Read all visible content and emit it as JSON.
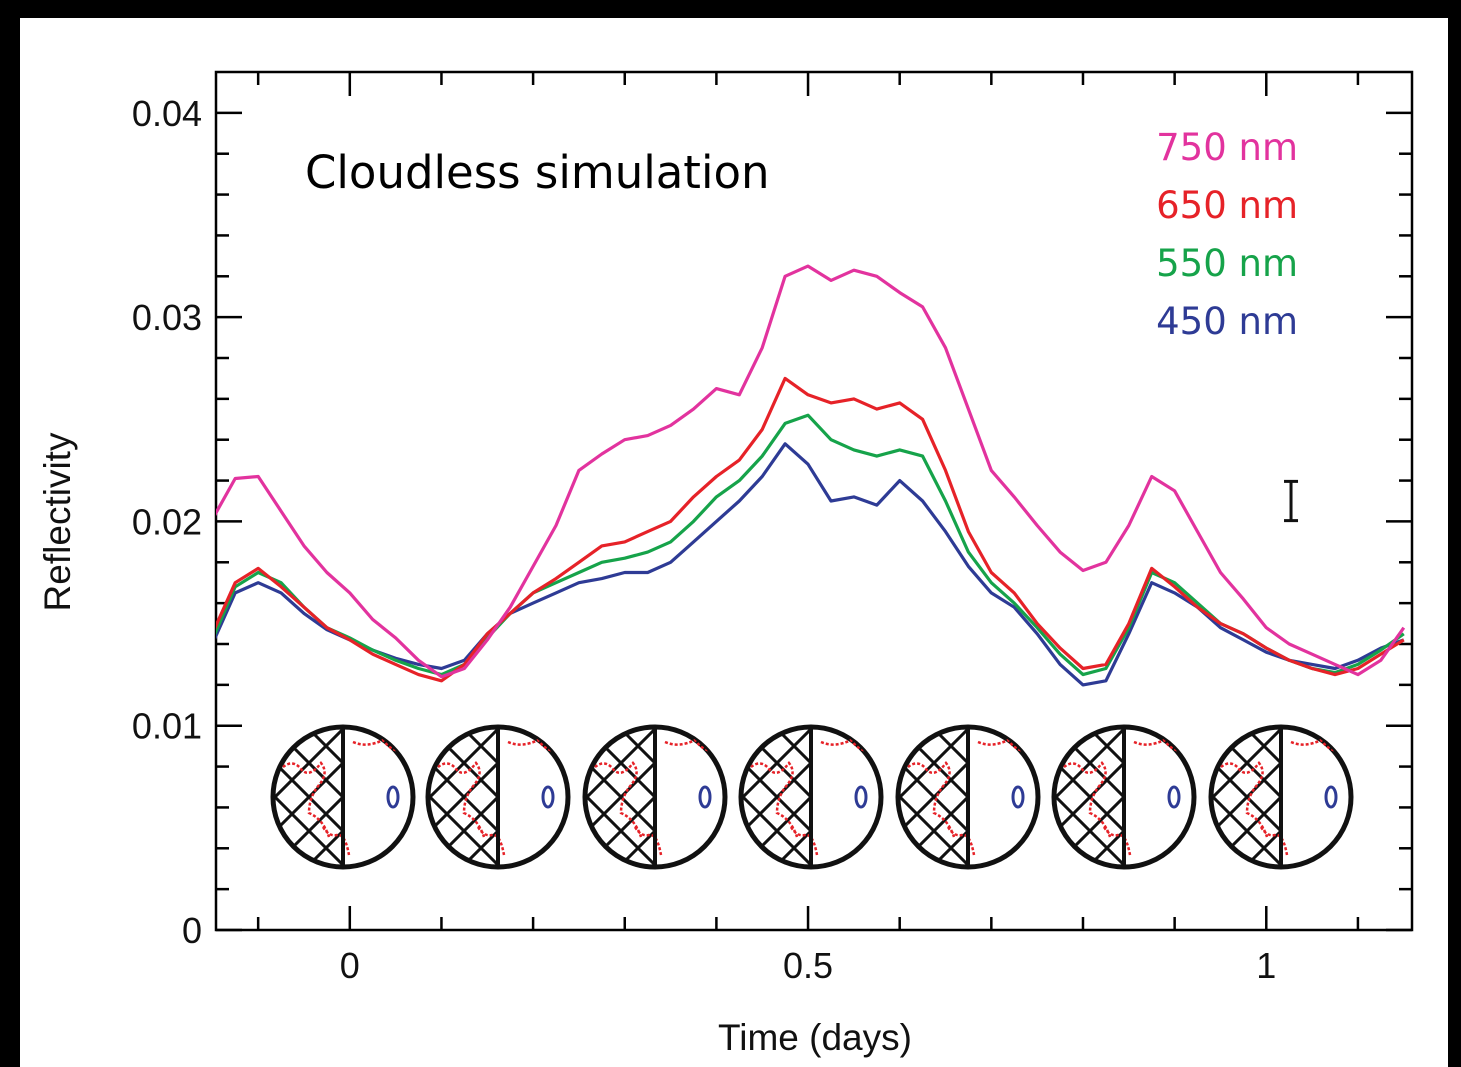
{
  "chart_data": {
    "type": "line",
    "annotation": "Cloudless simulation",
    "xlabel": "Time (days)",
    "ylabel": "Reflectivity",
    "xlim": [
      -0.146,
      1.159
    ],
    "ylim": [
      0,
      0.042
    ],
    "xticks": [
      0,
      0.5,
      1
    ],
    "yticks": [
      0,
      0.01,
      0.02,
      0.03,
      0.04
    ],
    "xticks_minor": [
      -0.1,
      0.1,
      0.2,
      0.3,
      0.4,
      0.6,
      0.7,
      0.8,
      0.9,
      1.1
    ],
    "yticks_minor": [
      0.002,
      0.004,
      0.006,
      0.008,
      0.012,
      0.014,
      0.016,
      0.018,
      0.022,
      0.024,
      0.026,
      0.028,
      0.032,
      0.034,
      0.036,
      0.038
    ],
    "x": [
      -0.15,
      -0.125,
      -0.1,
      -0.075,
      -0.05,
      -0.025,
      0,
      0.025,
      0.05,
      0.075,
      0.1,
      0.125,
      0.15,
      0.175,
      0.2,
      0.225,
      0.25,
      0.275,
      0.3,
      0.325,
      0.35,
      0.375,
      0.4,
      0.425,
      0.45,
      0.475,
      0.5,
      0.525,
      0.55,
      0.575,
      0.6,
      0.625,
      0.65,
      0.675,
      0.7,
      0.725,
      0.75,
      0.775,
      0.8,
      0.825,
      0.85,
      0.875,
      0.9,
      0.925,
      0.95,
      0.975,
      1,
      1.025,
      1.05,
      1.075,
      1.1,
      1.125,
      1.15
    ],
    "series": [
      {
        "name": "750 nm",
        "color": "#e2339e",
        "values": [
          0.0201,
          0.0221,
          0.0222,
          0.0205,
          0.0188,
          0.0175,
          0.0165,
          0.0152,
          0.0143,
          0.0132,
          0.0124,
          0.0128,
          0.0142,
          0.0158,
          0.0178,
          0.0198,
          0.0225,
          0.0233,
          0.024,
          0.0242,
          0.0247,
          0.0255,
          0.0265,
          0.0262,
          0.0285,
          0.032,
          0.0325,
          0.0318,
          0.0323,
          0.032,
          0.0312,
          0.0305,
          0.0285,
          0.0255,
          0.0225,
          0.0212,
          0.0198,
          0.0185,
          0.0176,
          0.018,
          0.0198,
          0.0222,
          0.0215,
          0.0195,
          0.0175,
          0.0162,
          0.0148,
          0.014,
          0.0135,
          0.013,
          0.0125,
          0.0132,
          0.0148
        ]
      },
      {
        "name": "650 nm",
        "color": "#e62228",
        "values": [
          0.0145,
          0.017,
          0.0177,
          0.0168,
          0.0158,
          0.0148,
          0.0142,
          0.0135,
          0.013,
          0.0125,
          0.0122,
          0.013,
          0.0145,
          0.0155,
          0.0165,
          0.0172,
          0.018,
          0.0188,
          0.019,
          0.0195,
          0.02,
          0.0212,
          0.0222,
          0.023,
          0.0245,
          0.027,
          0.0262,
          0.0258,
          0.026,
          0.0255,
          0.0258,
          0.025,
          0.0225,
          0.0195,
          0.0175,
          0.0165,
          0.015,
          0.0138,
          0.0128,
          0.013,
          0.015,
          0.0177,
          0.0168,
          0.0158,
          0.015,
          0.0145,
          0.0138,
          0.0132,
          0.0128,
          0.0125,
          0.0128,
          0.0135,
          0.0142
        ]
      },
      {
        "name": "550 nm",
        "color": "#16a34a",
        "values": [
          0.0142,
          0.0168,
          0.0175,
          0.017,
          0.0158,
          0.0148,
          0.0143,
          0.0137,
          0.0132,
          0.0128,
          0.0125,
          0.013,
          0.0143,
          0.0155,
          0.0165,
          0.017,
          0.0175,
          0.018,
          0.0182,
          0.0185,
          0.019,
          0.02,
          0.0212,
          0.022,
          0.0232,
          0.0248,
          0.0252,
          0.024,
          0.0235,
          0.0232,
          0.0235,
          0.0232,
          0.021,
          0.0185,
          0.017,
          0.016,
          0.0148,
          0.0135,
          0.0125,
          0.0128,
          0.0148,
          0.0175,
          0.017,
          0.016,
          0.015,
          0.0145,
          0.0138,
          0.0132,
          0.0128,
          0.0126,
          0.013,
          0.0137,
          0.0145
        ]
      },
      {
        "name": "450 nm",
        "color": "#2e3b95",
        "values": [
          0.014,
          0.0165,
          0.017,
          0.0165,
          0.0155,
          0.0147,
          0.0142,
          0.0137,
          0.0133,
          0.013,
          0.0128,
          0.0132,
          0.0145,
          0.0155,
          0.016,
          0.0165,
          0.017,
          0.0172,
          0.0175,
          0.0175,
          0.018,
          0.019,
          0.02,
          0.021,
          0.0222,
          0.0238,
          0.0228,
          0.021,
          0.0212,
          0.0208,
          0.022,
          0.021,
          0.0195,
          0.0178,
          0.0165,
          0.0158,
          0.0145,
          0.013,
          0.012,
          0.0122,
          0.0145,
          0.017,
          0.0165,
          0.0158,
          0.0148,
          0.0142,
          0.0136,
          0.0132,
          0.013,
          0.0128,
          0.0132,
          0.0138,
          0.0142
        ]
      }
    ],
    "error_bar": {
      "x": 1.027,
      "y": 0.021,
      "err": 0.00096
    }
  }
}
